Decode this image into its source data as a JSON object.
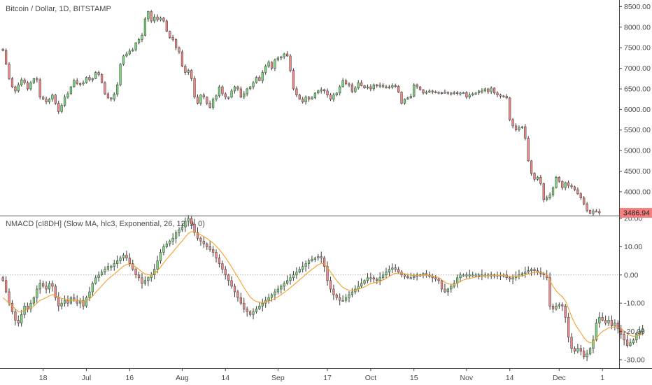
{
  "colors": {
    "up": "#7ed67e",
    "down": "#f08a8a",
    "wick": "#3a3a3a",
    "signal": "#f5a02a",
    "last_price_bg": "#f57f7f",
    "grid_zero": "#9a9a9a",
    "axis": "#444444",
    "divider": "#555555"
  },
  "price_pane": {
    "title": "Bitcoin / Dollar, 1D, BITSTAMP",
    "last_price_label": "3486.94"
  },
  "indicator_pane": {
    "title": "NMACD [cI8DH] (Slow MA, hlc3, Exponential, 26, 12, 9, 0)"
  },
  "chart_data": [
    {
      "type": "candlestick",
      "title": "Bitcoin / Dollar, 1D, BITSTAMP",
      "y_ticks": [
        4000,
        4500,
        5000,
        5500,
        6000,
        6500,
        7000,
        7500,
        8000,
        8500
      ],
      "y_tick_labels": [
        "4000.00",
        "4500.00",
        "5000.00",
        "5500.00",
        "6000.00",
        "6500.00",
        "7000.00",
        "7500.00",
        "8000.00",
        "8500.00"
      ],
      "ylim": [
        3420,
        8660
      ],
      "last_value": 3486.94,
      "close": [
        7430,
        7100,
        6750,
        6550,
        6450,
        6600,
        6720,
        6650,
        6500,
        6650,
        6750,
        6720,
        6300,
        6250,
        6180,
        6250,
        6350,
        6150,
        5950,
        6100,
        6300,
        6380,
        6550,
        6700,
        6630,
        6620,
        6650,
        6780,
        6720,
        6750,
        6900,
        6850,
        6650,
        6380,
        6280,
        6250,
        6370,
        6600,
        7100,
        7300,
        7350,
        7420,
        7450,
        7620,
        7700,
        7800,
        8200,
        8380,
        8150,
        8250,
        8180,
        8220,
        8150,
        7900,
        7750,
        7700,
        7500,
        7400,
        7050,
        6900,
        6950,
        6750,
        6300,
        6150,
        6350,
        6300,
        6150,
        6050,
        6250,
        6330,
        6550,
        6380,
        6300,
        6300,
        6450,
        6550,
        6500,
        6300,
        6380,
        6500,
        6550,
        6650,
        6780,
        6700,
        6900,
        7050,
        7150,
        7000,
        7200,
        7250,
        7280,
        7350,
        7300,
        6950,
        6500,
        6350,
        6250,
        6180,
        6300,
        6250,
        6280,
        6400,
        6450,
        6480,
        6450,
        6350,
        6250,
        6350,
        6400,
        6550,
        6700,
        6620,
        6600,
        6430,
        6520,
        6650,
        6580,
        6520,
        6550,
        6500,
        6600,
        6570,
        6590,
        6550,
        6550,
        6540,
        6580,
        6560,
        6420,
        6150,
        6250,
        6280,
        6320,
        6600,
        6550,
        6480,
        6400,
        6420,
        6450,
        6430,
        6420,
        6410,
        6400,
        6420,
        6400,
        6380,
        6410,
        6390,
        6400,
        6410,
        6300,
        6350,
        6380,
        6400,
        6450,
        6450,
        6500,
        6430,
        6520,
        6400,
        6350,
        6330,
        6320,
        6280,
        5750,
        5600,
        5500,
        5550,
        5580,
        5300,
        4750,
        4450,
        4300,
        4350,
        4200,
        3800,
        3850,
        3920,
        4100,
        4350,
        4250,
        4100,
        4220,
        4150,
        4120,
        4050,
        3950,
        3850,
        3700,
        3550,
        3470,
        3530,
        3520,
        3486.94
      ],
      "x_ticks": [
        {
          "index": 13,
          "label": "18"
        },
        {
          "index": 27,
          "label": "Jul"
        },
        {
          "index": 41,
          "label": "16"
        },
        {
          "index": 58,
          "label": "Aug"
        },
        {
          "index": 72,
          "label": "14"
        },
        {
          "index": 89,
          "label": "Sep"
        },
        {
          "index": 105,
          "label": "17"
        },
        {
          "index": 119,
          "label": "Oct"
        },
        {
          "index": 133,
          "label": "15"
        },
        {
          "index": 150,
          "label": "Nov"
        },
        {
          "index": 164,
          "label": "14"
        },
        {
          "index": 180,
          "label": "Dec"
        },
        {
          "index": 194,
          "label": "1"
        }
      ]
    },
    {
      "type": "candlestick",
      "title": "NMACD [cI8DH] (Slow MA, hlc3, Exponential, 26, 12, 9, 0)",
      "y_ticks": [
        -30,
        -20,
        -10,
        0,
        10,
        20
      ],
      "y_tick_labels": [
        "-30.00",
        "-20.00",
        "-10.00",
        "0.00",
        "10.00",
        "20.00"
      ],
      "ylim": [
        -33,
        21
      ],
      "close": [
        -2,
        -6,
        -10,
        -13,
        -16,
        -17,
        -14,
        -11,
        -12,
        -10,
        -8,
        -5,
        -3,
        -4,
        -5,
        -3,
        -4,
        -8,
        -11,
        -10,
        -9,
        -10,
        -8,
        -9,
        -10,
        -9,
        -11,
        -8,
        -6,
        -3,
        -1,
        0,
        1,
        2,
        3,
        3,
        4,
        5,
        6,
        7,
        6,
        4,
        2,
        0,
        -1,
        -3,
        -2,
        -1,
        0,
        2,
        5,
        8,
        10,
        11,
        12,
        13,
        15,
        16,
        17,
        19,
        20,
        18,
        15,
        13,
        12,
        11,
        10,
        9,
        8,
        6,
        4,
        2,
        0,
        -2,
        -4,
        -6,
        -8,
        -10,
        -12,
        -13,
        -14,
        -13,
        -12,
        -11,
        -10,
        -9,
        -8,
        -7,
        -6,
        -5,
        -4,
        -3,
        -2,
        -1,
        0,
        1,
        2,
        3,
        4,
        5,
        5.5,
        6,
        6.5,
        6,
        3,
        -2,
        -5,
        -7,
        -8,
        -9,
        -9,
        -8,
        -7,
        -6,
        -5,
        -4,
        -3,
        -2,
        -1,
        -1,
        -1.5,
        -2,
        -1,
        0,
        1,
        2,
        2.5,
        2,
        1,
        0,
        -0.5,
        -1,
        -1,
        -0.5,
        0,
        0,
        0.5,
        0,
        -0.5,
        -1,
        -1.5,
        -2,
        -5,
        -6,
        -5,
        -4,
        -3,
        -1,
        0,
        0,
        0,
        0,
        0,
        0,
        0,
        0,
        0,
        0,
        0,
        0,
        0,
        0,
        0,
        -1,
        -1.5,
        -1,
        -0.5,
        0,
        0.5,
        1,
        1.5,
        2,
        1.5,
        1,
        0.5,
        0,
        -1,
        -11,
        -12,
        -11,
        -10.5,
        -11,
        -15,
        -22,
        -26,
        -27,
        -26,
        -27,
        -29,
        -28,
        -26,
        -23,
        -17,
        -15,
        -16,
        -17,
        -16,
        -18,
        -17,
        -19,
        -21,
        -23,
        -25,
        -24,
        -23,
        -21,
        -20,
        -19
      ],
      "signal_line": [
        -8,
        -9,
        -10,
        -11,
        -12,
        -13,
        -13,
        -12.5,
        -12.3,
        -11.8,
        -11,
        -10,
        -9,
        -8.5,
        -8,
        -7.4,
        -7,
        -7.2,
        -7.8,
        -8.3,
        -8.5,
        -8.9,
        -8.9,
        -8.9,
        -9.1,
        -9,
        -9.4,
        -9.1,
        -8.5,
        -7.5,
        -6.2,
        -5,
        -3.8,
        -2.6,
        -1.5,
        -0.6,
        0.3,
        1.2,
        2.2,
        3.1,
        3.7,
        3.8,
        3.5,
        2.8,
        2,
        1,
        0.4,
        0.1,
        0.1,
        0.5,
        1.5,
        2.8,
        4.2,
        5.6,
        6.9,
        8.1,
        9.5,
        10.8,
        12,
        13.4,
        14.7,
        15.3,
        15.2,
        14.8,
        14.2,
        13.6,
        12.9,
        12.1,
        11.3,
        10.2,
        9,
        7.6,
        6.1,
        4.5,
        2.8,
        1,
        -0.8,
        -2.6,
        -4.5,
        -6.2,
        -7.8,
        -8.8,
        -9.4,
        -9.7,
        -9.8,
        -9.6,
        -9.3,
        -8.9,
        -8.3,
        -7.7,
        -7,
        -6.2,
        -5.4,
        -4.5,
        -3.6,
        -2.7,
        -1.7,
        -0.8,
        0.2,
        1.1,
        2,
        2.8,
        3.6,
        4.1,
        3.9,
        2.7,
        1.1,
        -0.5,
        -2,
        -3.3,
        -4.4,
        -5,
        -5.4,
        -5.5,
        -5.4,
        -5.1,
        -4.7,
        -4.2,
        -3.6,
        -3.1,
        -2.8,
        -2.6,
        -2.3,
        -1.8,
        -1.2,
        -0.5,
        0.2,
        0.6,
        0.7,
        0.6,
        0.4,
        0.1,
        -0.1,
        -0.2,
        -0.2,
        -0.2,
        -0.1,
        -0.1,
        -0.2,
        -0.4,
        -0.6,
        -0.9,
        -1.7,
        -2.6,
        -3.1,
        -3.3,
        -3.3,
        -2.9,
        -2.3,
        -1.8,
        -1.5,
        -1.2,
        -1,
        -0.8,
        -0.6,
        -0.5,
        -0.4,
        -0.3,
        -0.2,
        -0.2,
        -0.1,
        -0.1,
        -0.1,
        -0.3,
        -0.5,
        -0.6,
        -0.6,
        -0.5,
        -0.3,
        0,
        0.3,
        0.7,
        0.9,
        0.9,
        0.8,
        0.6,
        0.3,
        -2,
        -4,
        -5.6,
        -6.8,
        -7.7,
        -9.2,
        -11.8,
        -14.7,
        -17.1,
        -18.9,
        -20.5,
        -22.2,
        -23.4,
        -24,
        -23.8,
        -22.5,
        -21,
        -20,
        -19.4,
        -18.7,
        -18.6,
        -18.3,
        -18.5,
        -19,
        -19.8,
        -20.8,
        -21.4,
        -21.7,
        -21.6,
        -21.3,
        -20.8
      ]
    }
  ]
}
